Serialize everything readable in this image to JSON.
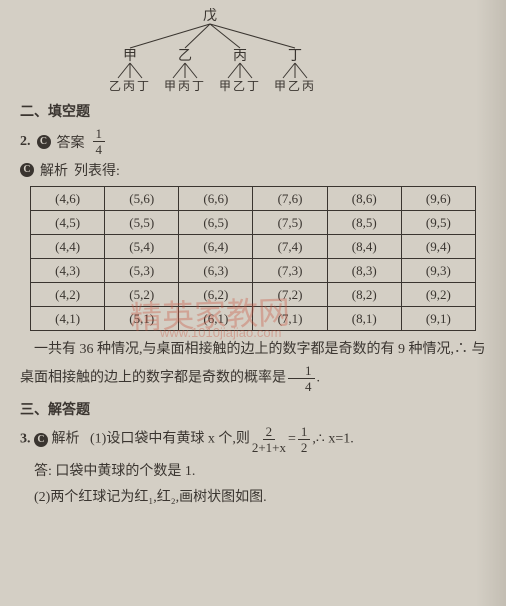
{
  "tree": {
    "root": "戊",
    "level2": [
      "甲",
      "乙",
      "丙",
      "丁"
    ],
    "level3": [
      "乙丙丁",
      "甲丙丁",
      "甲乙丁",
      "甲乙丙"
    ]
  },
  "section2_title": "二、填空题",
  "q2": {
    "num": "2.",
    "answer_label": "答案",
    "answer_frac_num": "1",
    "answer_frac_den": "4",
    "analysis_label": "解析",
    "analysis_text": "列表得:"
  },
  "table": {
    "rows": [
      [
        "(4,6)",
        "(5,6)",
        "(6,6)",
        "(7,6)",
        "(8,6)",
        "(9,6)"
      ],
      [
        "(4,5)",
        "(5,5)",
        "(6,5)",
        "(7,5)",
        "(8,5)",
        "(9,5)"
      ],
      [
        "(4,4)",
        "(5,4)",
        "(6,4)",
        "(7,4)",
        "(8,4)",
        "(9,4)"
      ],
      [
        "(4,3)",
        "(5,3)",
        "(6,3)",
        "(7,3)",
        "(8,3)",
        "(9,3)"
      ],
      [
        "(4,2)",
        "(5,2)",
        "(6,2)",
        "(7,2)",
        "(8,2)",
        "(9,2)"
      ],
      [
        "(4,1)",
        "(5,1)",
        "(6,1)",
        "(7,1)",
        "(8,1)",
        "(9,1)"
      ]
    ],
    "border_color": "#3a3530",
    "cell_fontsize": 13
  },
  "explanation": {
    "text1": "一共有 36 种情况,与桌面相接触的边上的数字都是奇数的有 9 种情况,∴ 与桌面相接触的边上的数字都是奇数的概率是",
    "frac_num": "1",
    "frac_den": "4",
    "text2": "."
  },
  "section3_title": "三、解答题",
  "q3": {
    "num": "3.",
    "analysis_label": "解析",
    "part1_prefix": "(1)设口袋中有黄球 x 个,则",
    "eq_frac1_num": "2",
    "eq_frac1_den": "2+1+x",
    "eq_mid": "=",
    "eq_frac2_num": "1",
    "eq_frac2_den": "2",
    "eq_suffix": ",∴ x=1.",
    "answer_text": "答: 口袋中黄球的个数是 1.",
    "part2_text": "(2)两个红球记为红₁,红₂,画树状图如图."
  },
  "watermark_main": "精英家教网",
  "watermark_sub": "www.1010jiajiao.com",
  "colors": {
    "background": "#d4cfc5",
    "text": "#3a3530",
    "watermark": "rgba(200,80,60,0.35)"
  }
}
